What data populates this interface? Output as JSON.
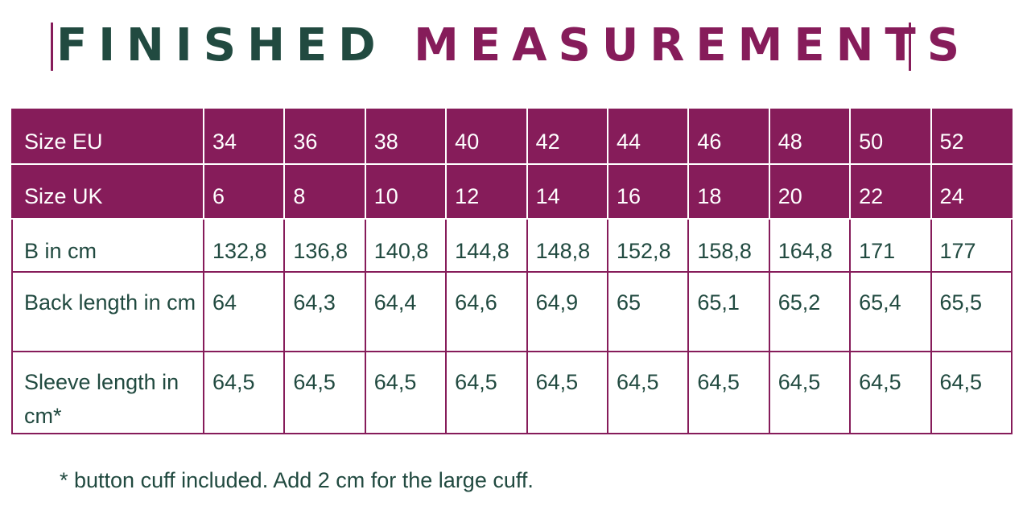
{
  "title": {
    "part1": "FINISHED",
    "part2": "MEASUREMENTS"
  },
  "colors": {
    "purple": "#861c5a",
    "green": "#214a40"
  },
  "rows": [
    {
      "label": "Size EU",
      "values": [
        "34",
        "36",
        "38",
        "40",
        "42",
        "44",
        "46",
        "48",
        "50",
        "52"
      ]
    },
    {
      "label": "Size UK",
      "values": [
        "6",
        "8",
        "10",
        "12",
        "14",
        "16",
        "18",
        "20",
        "22",
        "24"
      ]
    },
    {
      "label": "B in cm",
      "values": [
        "132,8",
        "136,8",
        "140,8",
        "144,8",
        "148,8",
        "152,8",
        "158,8",
        "164,8",
        "171",
        "177"
      ]
    },
    {
      "label": "Back length in cm",
      "values": [
        "64",
        "64,3",
        "64,4",
        "64,6",
        "64,9",
        "65",
        "65,1",
        "65,2",
        "65,4",
        "65,5"
      ]
    },
    {
      "label": "Sleeve length in cm*",
      "values": [
        "64,5",
        "64,5",
        "64,5",
        "64,5",
        "64,5",
        "64,5",
        "64,5",
        "64,5",
        "64,5",
        "64,5"
      ]
    }
  ],
  "footnote": "* button cuff included. Add 2 cm for the large cuff."
}
